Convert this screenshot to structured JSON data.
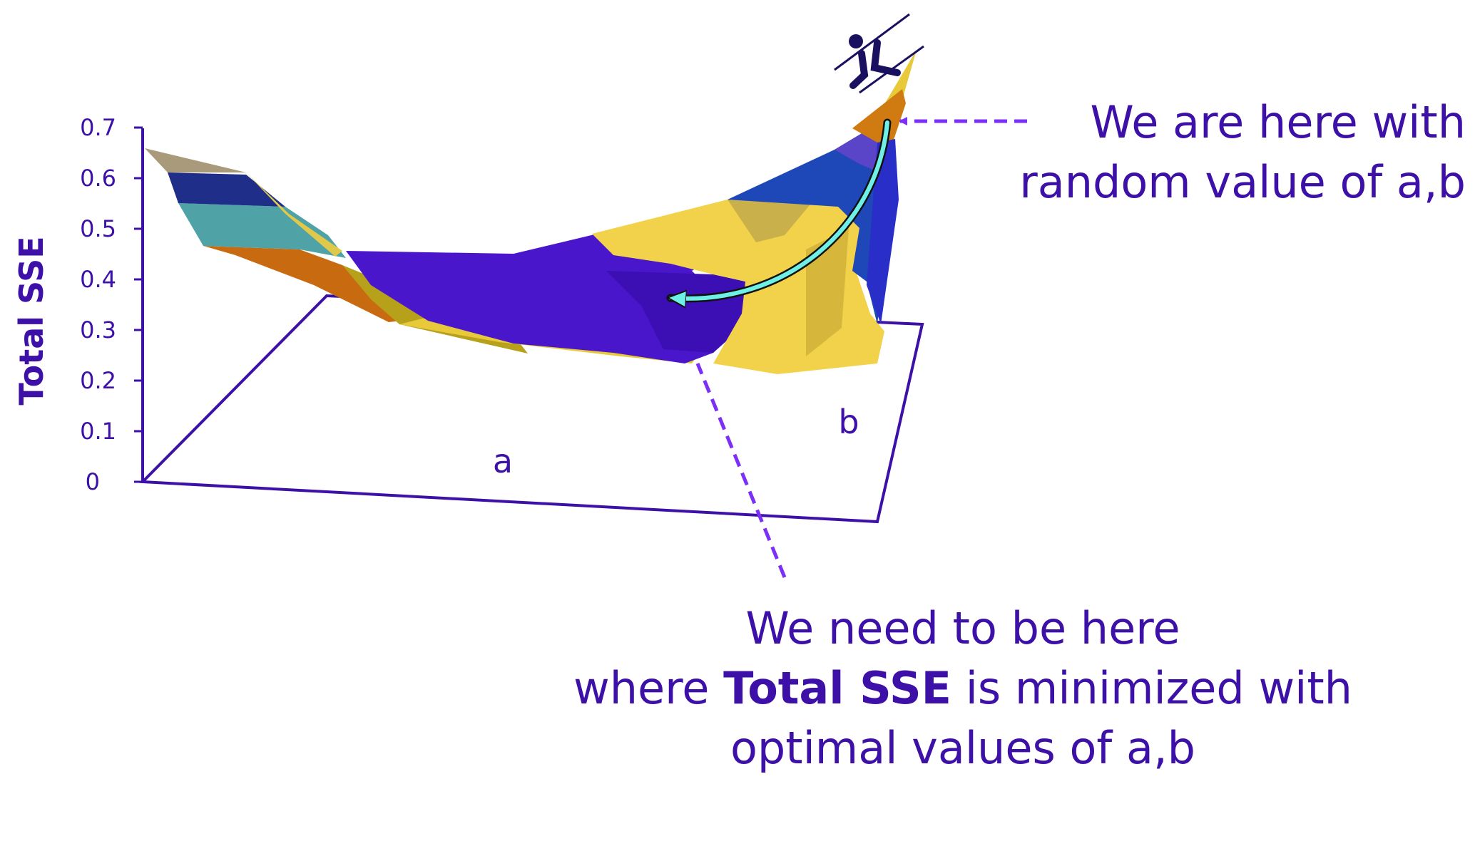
{
  "colors": {
    "ink": "#3d10a8",
    "axis": "#3d10a8",
    "dash": "#7b2ff7",
    "path": "#6ff0e6",
    "surface_purple": "#4a16cc",
    "surface_yellow": "#f2d24a",
    "surface_blue": "#1e47b8",
    "surface_teal": "#4fa3a6",
    "surface_orange": "#c86a10",
    "surface_olive": "#b8a11a"
  },
  "y_axis": {
    "label": "Total SSE",
    "ticks": [
      "0",
      "0.1",
      "0.2",
      "0.3",
      "0.4",
      "0.5",
      "0.6",
      "0.7"
    ]
  },
  "base_axes": {
    "a_label": "a",
    "b_label": "b"
  },
  "icons": {
    "skier": "skier-icon",
    "path_arrow": "descent-arrow"
  },
  "annotations": {
    "current_line1": "We are here with",
    "current_line2": "random value of a,b",
    "target_line1": "We need to be here",
    "target_line2_pre": "where ",
    "target_line2_bold": "Total SSE",
    "target_line2_post": " is minimized with",
    "target_line3": "optimal values of a,b"
  }
}
